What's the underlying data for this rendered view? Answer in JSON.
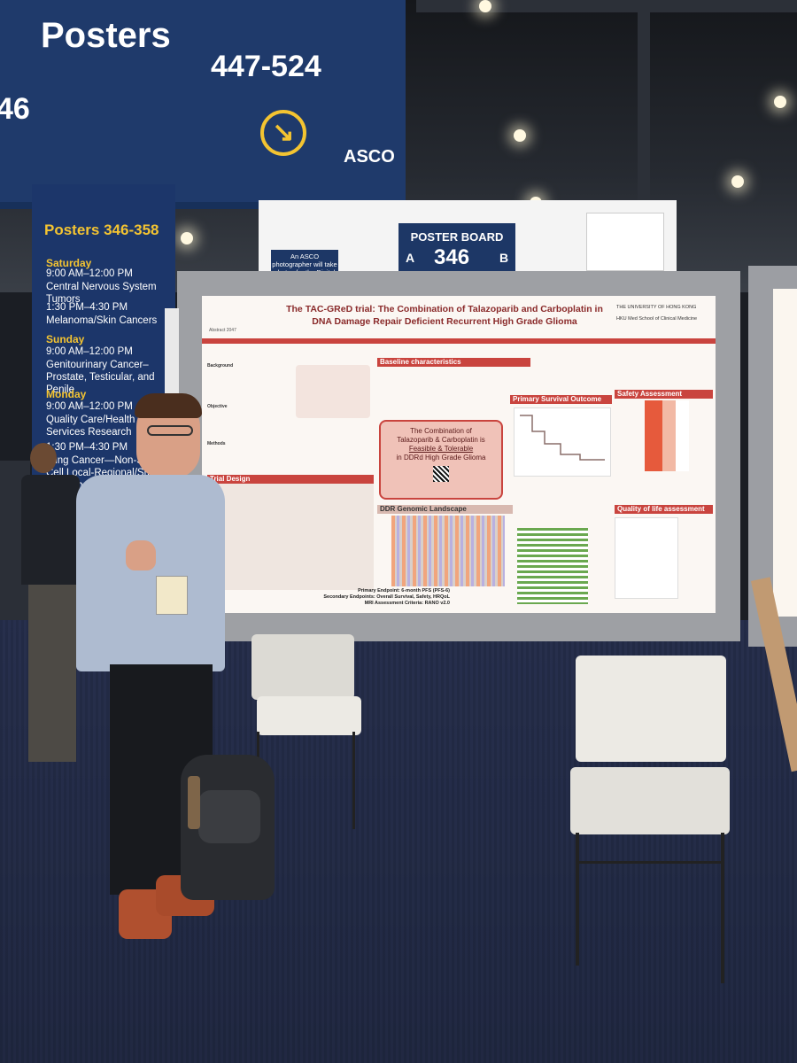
{
  "banner": {
    "title": "Posters",
    "range": "447-524",
    "side_number": "46",
    "brand": "ASCO"
  },
  "side_banner": {
    "heading": "Posters 346-358",
    "days": [
      {
        "day": "Saturday",
        "sessions": [
          {
            "time": "9:00 AM–12:00 PM",
            "topic": "Central Nervous System Tumors"
          },
          {
            "time": "1:30 PM–4:30 PM",
            "topic": "Melanoma/Skin Cancers"
          }
        ]
      },
      {
        "day": "Sunday",
        "sessions": [
          {
            "time": "9:00 AM–12:00 PM",
            "topic": "Genitourinary Cancer–Prostate, Testicular, and Penile"
          }
        ]
      },
      {
        "day": "Monday",
        "sessions": [
          {
            "time": "9:00 AM–12:00 PM",
            "topic": "Quality Care/Health Services Research"
          },
          {
            "time": "1:30 PM–4:30 PM",
            "topic": "Lung Cancer—Non-Small Cell Local-Regional/Small Cell/Other Thoracic Cancers"
          }
        ]
      }
    ]
  },
  "board": {
    "label": "POSTER BOARD",
    "number": "346",
    "left": "A",
    "right": "B",
    "photo_notice": "An ASCO photographer will take photos for the Digital Program."
  },
  "poster": {
    "abstract": "Abstract 2047",
    "title_line1": "The TAC-GReD trial: The Combination of Talazoparib and Carboplatin in",
    "title_line2": "DNA Damage Repair Deficient Recurrent High Grade Glioma",
    "institution": "THE UNIVERSITY OF HONG KONG",
    "school": "HKU Med School of Clinical Medicine",
    "sections": {
      "background": "Background",
      "objective": "Objective",
      "methods": "Methods",
      "trial_design": "Trial Design",
      "baseline": "Baseline characteristics",
      "survival": "Primary Survival Outcome",
      "safety": "Safety Assessment",
      "ddr": "DDR Genomic Landscape",
      "qol": "Quality of life assessment"
    },
    "callout_line1": "The Combination of",
    "callout_line2": "Talazoparib & Carboplatin is",
    "callout_line3": "Feasible & Tolerable",
    "callout_line4": "in DDRd High Grade Glioma",
    "endpoints": {
      "primary": "Primary Endpoint: 6-month PFS (PFS-6)",
      "secondary": "Secondary Endpoints: Overall Survival, Safety, HRQoL",
      "mri": "MRI Assessment Criteria: RANO v2.0"
    }
  }
}
